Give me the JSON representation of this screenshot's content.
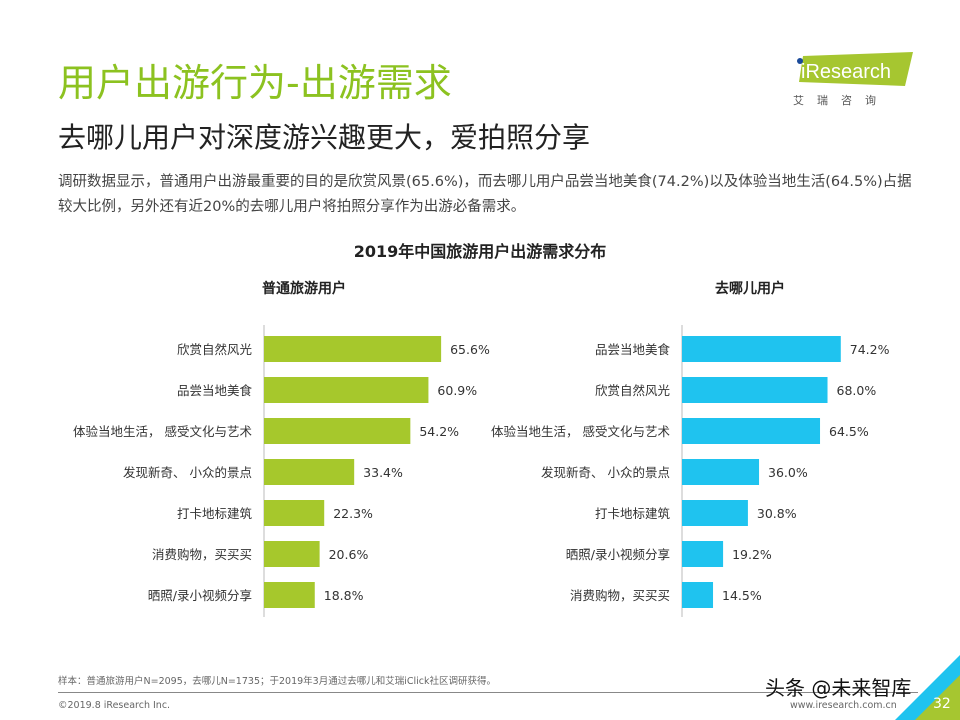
{
  "header": {
    "title": "用户出游行为-出游需求",
    "subtitle": "去哪儿用户对深度游兴趣更大，爱拍照分享",
    "description": "调研数据显示，普通用户出游最重要的目的是欣赏风景(65.6%)，而去哪儿用户品尝当地美食(74.2%)以及体验当地生活(64.5%)占据较大比例，另外还有近20%的去哪儿用户将拍照分享作为出游必备需求。"
  },
  "logo": {
    "text": "iResearch",
    "sub": "艾瑞咨询",
    "color": "#a6c630"
  },
  "chart_data": [
    {
      "type": "bar",
      "orientation": "horizontal",
      "title": "2019年中国旅游用户出游需求分布",
      "panel_title": "普通旅游用户",
      "color": "#a6c82c",
      "categories": [
        "欣赏自然风光",
        "品尝当地美食",
        "体验当地生活， 感受文化与艺术",
        "发现新奇、 小众的景点",
        "打卡地标建筑",
        "消费购物，买买买",
        "晒照/录小视频分享"
      ],
      "values": [
        65.6,
        60.9,
        54.2,
        33.4,
        22.3,
        20.6,
        18.8
      ],
      "labels": [
        "65.6%",
        "60.9%",
        "54.2%",
        "33.4%",
        "22.3%",
        "20.6%",
        "18.8%"
      ]
    },
    {
      "type": "bar",
      "orientation": "horizontal",
      "panel_title": "去哪儿用户",
      "color": "#1fc3ef",
      "categories": [
        "品尝当地美食",
        "欣赏自然风光",
        "体验当地生活， 感受文化与艺术",
        "发现新奇、 小众的景点",
        "打卡地标建筑",
        "晒照/录小视频分享",
        "消费购物，买买买"
      ],
      "values": [
        74.2,
        68.0,
        64.5,
        36.0,
        30.8,
        19.2,
        14.5
      ],
      "labels": [
        "74.2%",
        "68.0%",
        "64.5%",
        "36.0%",
        "30.8%",
        "19.2%",
        "14.5%"
      ]
    }
  ],
  "footer": {
    "note": "样本：普通旅游用户N=2095，去哪儿N=1735；于2019年3月通过去哪儿和艾瑞iClick社区调研获得。",
    "copyright": "©2019.8 iResearch Inc.",
    "url": "www.iresearch.com.cn",
    "page": "32",
    "watermark": "头条 @未来智库"
  }
}
